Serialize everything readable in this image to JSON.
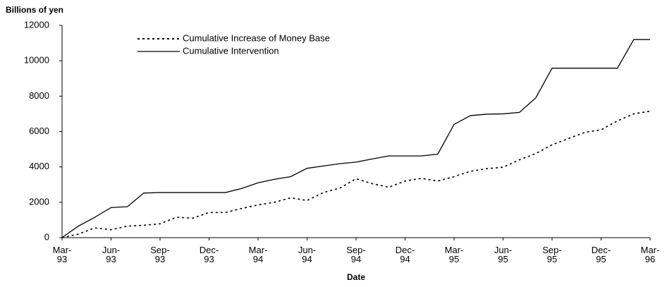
{
  "chart_data": {
    "type": "line",
    "ylabel": "Billions of yen",
    "xlabel": "Date",
    "categories": [
      "Mar-93",
      null,
      null,
      "Jun-93",
      null,
      null,
      "Sep-93",
      null,
      null,
      "Dec-93",
      null,
      null,
      "Mar-94",
      null,
      null,
      "Jun-94",
      null,
      null,
      "Sep-94",
      null,
      null,
      "Dec-94",
      null,
      null,
      "Mar-95",
      null,
      null,
      "Jun-95",
      null,
      null,
      "Sep-95",
      null,
      null,
      "Dec-95",
      null,
      null,
      "Mar-96"
    ],
    "series": [
      {
        "name": "Cumulative Increase of Money Base",
        "color": "#000000",
        "style": "dotted",
        "values": [
          0,
          200,
          550,
          450,
          650,
          700,
          780,
          1150,
          1100,
          1420,
          1420,
          1650,
          1850,
          2000,
          2250,
          2100,
          2550,
          2800,
          3330,
          3050,
          2850,
          3200,
          3350,
          3200,
          3450,
          3750,
          3900,
          3980,
          4400,
          4750,
          5250,
          5600,
          5950,
          6100,
          6600,
          7000,
          7150
        ]
      },
      {
        "name": "Cumulative Intervention",
        "color": "#000000",
        "style": "solid",
        "values": [
          0,
          650,
          1150,
          1700,
          1750,
          2520,
          2550,
          2550,
          2550,
          2550,
          2550,
          2780,
          3100,
          3300,
          3450,
          3920,
          4050,
          4180,
          4270,
          4450,
          4620,
          4620,
          4620,
          4720,
          6400,
          6900,
          6980,
          7000,
          7080,
          7900,
          9580,
          9580,
          9580,
          9580,
          9580,
          11200,
          11200
        ]
      }
    ],
    "ylim": [
      0,
      12000
    ],
    "yticks": [
      0,
      2000,
      4000,
      6000,
      8000,
      10000,
      12000
    ],
    "legend": "top-left",
    "grid": false
  }
}
